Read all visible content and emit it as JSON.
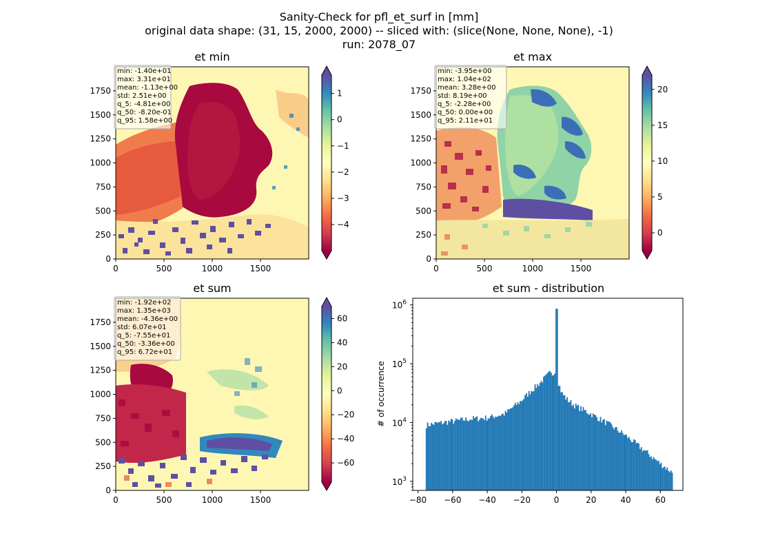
{
  "figure": {
    "title_lines": [
      "Sanity-Check for pfl_et_surf in [mm]",
      "original data shape: (31, 15, 2000, 2000) -- sliced with: (slice(None, None, None), -1)",
      "run: 2078_07"
    ]
  },
  "chart_data": [
    {
      "type": "heatmap",
      "title": "et min",
      "x_ticks": [
        0,
        500,
        1000,
        1500
      ],
      "y_ticks": [
        0,
        250,
        500,
        750,
        1000,
        1250,
        1500,
        1750
      ],
      "xlim": [
        0,
        2000
      ],
      "ylim": [
        0,
        2000
      ],
      "colormap": "Spectral",
      "colorbar": {
        "range": [
          -5,
          1.7
        ],
        "ticks": [
          1,
          0,
          -1,
          -2,
          -3,
          -4
        ],
        "tick_labels": [
          "1",
          "0",
          "−1",
          "−2",
          "−3",
          "−4"
        ],
        "extend": "both"
      },
      "stats": [
        "min: -1.40e+01",
        "max: 3.31e+01",
        "mean: -1.13e+00",
        "std: 2.51e+00",
        "q_5: -4.81e+00",
        "q_50: -8.20e-01",
        "q_95: 1.58e+00"
      ]
    },
    {
      "type": "heatmap",
      "title": "et max",
      "x_ticks": [
        0,
        500,
        1000,
        1500
      ],
      "y_ticks": [
        0,
        250,
        500,
        750,
        1000,
        1250,
        1500,
        1750
      ],
      "xlim": [
        0,
        2000
      ],
      "ylim": [
        0,
        2000
      ],
      "colormap": "Spectral",
      "colorbar": {
        "range": [
          -2.5,
          22
        ],
        "ticks": [
          20,
          15,
          10,
          5,
          0
        ],
        "tick_labels": [
          "20",
          "15",
          "10",
          "5",
          "0"
        ],
        "extend": "both"
      },
      "stats": [
        "min: -3.95e+00",
        "max: 1.04e+02",
        "mean: 3.28e+00",
        "std: 8.19e+00",
        "q_5: -2.28e+00",
        "q_50: 0.00e+00",
        "q_95: 2.11e+01"
      ]
    },
    {
      "type": "heatmap",
      "title": "et sum",
      "x_ticks": [
        0,
        500,
        1000,
        1500
      ],
      "y_ticks": [
        0,
        250,
        500,
        750,
        1000,
        1250,
        1500,
        1750
      ],
      "xlim": [
        0,
        2000
      ],
      "ylim": [
        0,
        2000
      ],
      "colormap": "Spectral",
      "colorbar": {
        "range": [
          -76,
          70
        ],
        "ticks": [
          60,
          40,
          20,
          0,
          -20,
          -40,
          -60
        ],
        "tick_labels": [
          "60",
          "40",
          "20",
          "0",
          "−20",
          "−40",
          "−60"
        ],
        "extend": "both"
      },
      "stats": [
        "min: -1.92e+02",
        "max: 1.35e+03",
        "mean: -4.36e+00",
        "std: 6.07e+01",
        "q_5: -7.55e+01",
        "q_50: -3.36e+00",
        "q_95: 6.72e+01"
      ]
    },
    {
      "type": "bar",
      "title": "et sum - distribution",
      "ylabel": "# of occurrence",
      "yscale": "log",
      "xlim": [
        -83,
        73
      ],
      "ylim": [
        700,
        1300000
      ],
      "x_ticks": [
        -80,
        -60,
        -40,
        -20,
        0,
        20,
        40,
        60
      ],
      "x_tick_labels": [
        "−80",
        "−60",
        "−40",
        "−20",
        "0",
        "20",
        "40",
        "60"
      ],
      "y_ticks": [
        1000,
        10000,
        100000,
        1000000
      ],
      "y_tick_labels": [
        [
          "10",
          "3"
        ],
        [
          "10",
          "4"
        ],
        [
          "10",
          "5"
        ],
        [
          "10",
          "6"
        ]
      ],
      "bar_color": "#1f77b4",
      "bins": {
        "x_start": -75.5,
        "x_end": 67.2
      },
      "curve": [
        [
          -75.5,
          9000
        ],
        [
          -70,
          9600
        ],
        [
          -60,
          10500
        ],
        [
          -50,
          11500
        ],
        [
          -40,
          12000
        ],
        [
          -30,
          14000
        ],
        [
          -20,
          24000
        ],
        [
          -15,
          34000
        ],
        [
          -10,
          46000
        ],
        [
          -6,
          60000
        ],
        [
          -3,
          75000
        ],
        [
          -1,
          65000
        ],
        [
          0,
          860000
        ],
        [
          1,
          50000
        ],
        [
          3,
          32000
        ],
        [
          6,
          25000
        ],
        [
          10,
          20000
        ],
        [
          20,
          14000
        ],
        [
          30,
          9500
        ],
        [
          40,
          6000
        ],
        [
          50,
          3500
        ],
        [
          60,
          2000
        ],
        [
          67.2,
          1400
        ]
      ]
    }
  ]
}
